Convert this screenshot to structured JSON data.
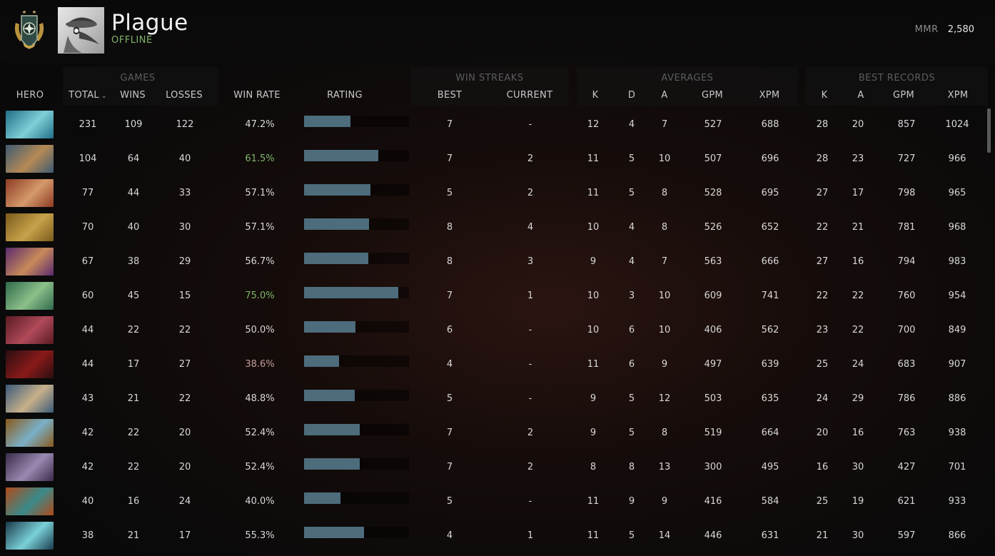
{
  "player": {
    "name": "Plague",
    "status": "OFFLINE",
    "mmr_label": "MMR",
    "mmr_value": "2,580"
  },
  "groups": {
    "games": "GAMES",
    "win_streaks": "WIN STREAKS",
    "averages": "AVERAGES",
    "best_records": "BEST RECORDS"
  },
  "columns": {
    "hero": "HERO",
    "total": "TOTAL",
    "wins": "WINS",
    "losses": "LOSSES",
    "win_rate": "WIN RATE",
    "rating": "RATING",
    "best": "BEST",
    "current": "CURRENT",
    "avg_k": "K",
    "avg_d": "D",
    "avg_a": "A",
    "avg_gpm": "GPM",
    "avg_xpm": "XPM",
    "best_k": "K",
    "best_a": "A",
    "best_gpm": "GPM",
    "best_xpm": "XPM"
  },
  "colors": {
    "rate_good": "#7fb36a",
    "rate_bad": "#c49a9a",
    "rate_normal": "#d8d8d8",
    "bar": "#4d6c7c"
  },
  "rows": [
    {
      "hero_icon": "morphling-hero-icon",
      "hero_colors": [
        "#1f6e86",
        "#7fd0d8"
      ],
      "total": "231",
      "wins": "109",
      "losses": "122",
      "win_rate": "47.2%",
      "rate_tone": "normal",
      "rating": 0.44,
      "best": "7",
      "current": "-",
      "avg_k": "12",
      "avg_d": "4",
      "avg_a": "7",
      "avg_gpm": "527",
      "avg_xpm": "688",
      "best_k": "28",
      "best_a": "20",
      "best_gpm": "857",
      "best_xpm": "1024"
    },
    {
      "hero_icon": "clinkz-hero-icon",
      "hero_colors": [
        "#3d5a72",
        "#b58a55"
      ],
      "total": "104",
      "wins": "64",
      "losses": "40",
      "win_rate": "61.5%",
      "rate_tone": "good",
      "rating": 0.71,
      "best": "7",
      "current": "2",
      "avg_k": "11",
      "avg_d": "5",
      "avg_a": "10",
      "avg_gpm": "507",
      "avg_xpm": "696",
      "best_k": "28",
      "best_a": "23",
      "best_gpm": "727",
      "best_xpm": "966"
    },
    {
      "hero_icon": "axe-hero-icon",
      "hero_colors": [
        "#8e3a24",
        "#d49a6a"
      ],
      "total": "77",
      "wins": "44",
      "losses": "33",
      "win_rate": "57.1%",
      "rate_tone": "normal",
      "rating": 0.63,
      "best": "5",
      "current": "2",
      "avg_k": "11",
      "avg_d": "5",
      "avg_a": "8",
      "avg_gpm": "528",
      "avg_xpm": "695",
      "best_k": "27",
      "best_a": "17",
      "best_gpm": "798",
      "best_xpm": "965"
    },
    {
      "hero_icon": "monkey-king-hero-icon",
      "hero_colors": [
        "#7a5a1c",
        "#c7a24a"
      ],
      "total": "70",
      "wins": "40",
      "losses": "30",
      "win_rate": "57.1%",
      "rate_tone": "normal",
      "rating": 0.62,
      "best": "8",
      "current": "4",
      "avg_k": "10",
      "avg_d": "4",
      "avg_a": "8",
      "avg_gpm": "526",
      "avg_xpm": "652",
      "best_k": "22",
      "best_a": "21",
      "best_gpm": "781",
      "best_xpm": "968"
    },
    {
      "hero_icon": "anti-mage-hero-icon",
      "hero_colors": [
        "#5a2a6e",
        "#c88a5a"
      ],
      "total": "67",
      "wins": "38",
      "losses": "29",
      "win_rate": "56.7%",
      "rate_tone": "normal",
      "rating": 0.61,
      "best": "8",
      "current": "3",
      "avg_k": "9",
      "avg_d": "4",
      "avg_a": "7",
      "avg_gpm": "563",
      "avg_xpm": "666",
      "best_k": "27",
      "best_a": "16",
      "best_gpm": "794",
      "best_xpm": "983"
    },
    {
      "hero_icon": "medusa-hero-icon",
      "hero_colors": [
        "#2f6a4a",
        "#8cc08a"
      ],
      "total": "60",
      "wins": "45",
      "losses": "15",
      "win_rate": "75.0%",
      "rate_tone": "good",
      "rating": 0.9,
      "best": "7",
      "current": "1",
      "avg_k": "10",
      "avg_d": "3",
      "avg_a": "10",
      "avg_gpm": "609",
      "avg_xpm": "741",
      "best_k": "22",
      "best_a": "22",
      "best_gpm": "760",
      "best_xpm": "954"
    },
    {
      "hero_icon": "queen-of-pain-hero-icon",
      "hero_colors": [
        "#5a1a22",
        "#b04a5a"
      ],
      "total": "44",
      "wins": "22",
      "losses": "22",
      "win_rate": "50.0%",
      "rate_tone": "normal",
      "rating": 0.49,
      "best": "6",
      "current": "-",
      "avg_k": "10",
      "avg_d": "6",
      "avg_a": "10",
      "avg_gpm": "406",
      "avg_xpm": "562",
      "best_k": "23",
      "best_a": "22",
      "best_gpm": "700",
      "best_xpm": "849"
    },
    {
      "hero_icon": "shadow-fiend-hero-icon",
      "hero_colors": [
        "#2a0e10",
        "#8a1a1a"
      ],
      "total": "44",
      "wins": "17",
      "losses": "27",
      "win_rate": "38.6%",
      "rate_tone": "bad",
      "rating": 0.33,
      "best": "4",
      "current": "-",
      "avg_k": "11",
      "avg_d": "6",
      "avg_a": "9",
      "avg_gpm": "497",
      "avg_xpm": "639",
      "best_k": "25",
      "best_a": "24",
      "best_gpm": "683",
      "best_xpm": "907"
    },
    {
      "hero_icon": "kunkka-hero-icon",
      "hero_colors": [
        "#3a5a7a",
        "#c8b08a"
      ],
      "total": "43",
      "wins": "21",
      "losses": "22",
      "win_rate": "48.8%",
      "rate_tone": "normal",
      "rating": 0.48,
      "best": "5",
      "current": "-",
      "avg_k": "9",
      "avg_d": "5",
      "avg_a": "12",
      "avg_gpm": "503",
      "avg_xpm": "635",
      "best_k": "24",
      "best_a": "29",
      "best_gpm": "786",
      "best_xpm": "886"
    },
    {
      "hero_icon": "morph-hero-icon",
      "hero_colors": [
        "#8a5a1a",
        "#7ab0c8"
      ],
      "total": "42",
      "wins": "22",
      "losses": "20",
      "win_rate": "52.4%",
      "rate_tone": "normal",
      "rating": 0.53,
      "best": "7",
      "current": "2",
      "avg_k": "9",
      "avg_d": "5",
      "avg_a": "8",
      "avg_gpm": "519",
      "avg_xpm": "664",
      "best_k": "20",
      "best_a": "16",
      "best_gpm": "763",
      "best_xpm": "938"
    },
    {
      "hero_icon": "riki-hero-icon",
      "hero_colors": [
        "#3a2a4a",
        "#9a8ab0"
      ],
      "total": "42",
      "wins": "22",
      "losses": "20",
      "win_rate": "52.4%",
      "rate_tone": "normal",
      "rating": 0.53,
      "best": "7",
      "current": "2",
      "avg_k": "8",
      "avg_d": "8",
      "avg_a": "13",
      "avg_gpm": "300",
      "avg_xpm": "495",
      "best_k": "16",
      "best_a": "30",
      "best_gpm": "427",
      "best_xpm": "701"
    },
    {
      "hero_icon": "tidehunter-hero-icon",
      "hero_colors": [
        "#b04a1a",
        "#3a8a8a"
      ],
      "total": "40",
      "wins": "16",
      "losses": "24",
      "win_rate": "40.0%",
      "rate_tone": "normal",
      "rating": 0.35,
      "best": "5",
      "current": "-",
      "avg_k": "11",
      "avg_d": "9",
      "avg_a": "9",
      "avg_gpm": "416",
      "avg_xpm": "584",
      "best_k": "25",
      "best_a": "19",
      "best_gpm": "621",
      "best_xpm": "933"
    },
    {
      "hero_icon": "storm-spirit-hero-icon",
      "hero_colors": [
        "#1a3a4a",
        "#7ad0d8"
      ],
      "total": "38",
      "wins": "21",
      "losses": "17",
      "win_rate": "55.3%",
      "rate_tone": "normal",
      "rating": 0.57,
      "best": "4",
      "current": "1",
      "avg_k": "11",
      "avg_d": "5",
      "avg_a": "14",
      "avg_gpm": "446",
      "avg_xpm": "631",
      "best_k": "21",
      "best_a": "30",
      "best_gpm": "597",
      "best_xpm": "866"
    }
  ]
}
